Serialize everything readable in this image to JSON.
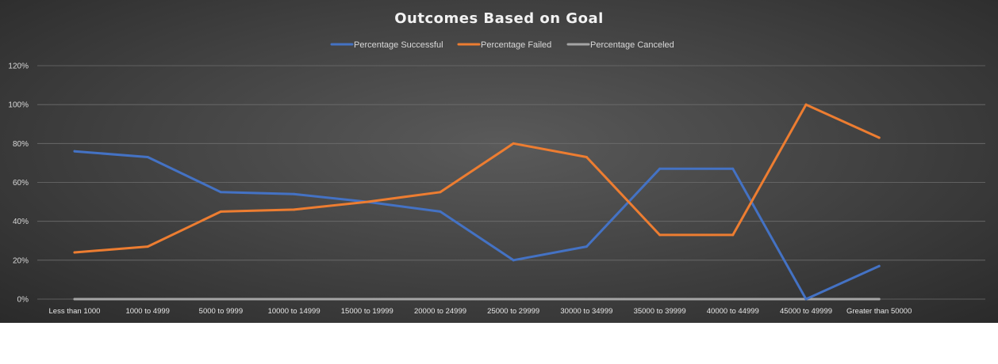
{
  "chart_data": {
    "type": "line",
    "title": "Outcomes  Based  on  Goal",
    "categories": [
      "Less than 1000",
      "1000 to 4999",
      "5000 to 9999",
      "10000 to 14999",
      "15000 to 19999",
      "20000 to 24999",
      "25000 to 29999",
      "30000 to 34999",
      "35000 to 39999",
      "40000 to 44999",
      "45000 to 49999",
      "Greater than 50000"
    ],
    "series": [
      {
        "name": "Percentage Successful",
        "color": "#4472c4",
        "values": [
          76,
          73,
          55,
          54,
          50,
          45,
          20,
          27,
          67,
          67,
          0,
          17
        ]
      },
      {
        "name": "Percentage Failed",
        "color": "#ed7d31",
        "values": [
          24,
          27,
          45,
          46,
          50,
          55,
          80,
          73,
          33,
          33,
          100,
          83
        ]
      },
      {
        "name": "Percentage Canceled",
        "color": "#a5a5a5",
        "values": [
          0,
          0,
          0,
          0,
          0,
          0,
          0,
          0,
          0,
          0,
          0,
          0
        ]
      }
    ],
    "yticks": [
      "0%",
      "20%",
      "40%",
      "60%",
      "80%",
      "100%",
      "120%"
    ],
    "ylim": [
      0,
      120
    ],
    "grid": true,
    "legend_position": "top"
  }
}
